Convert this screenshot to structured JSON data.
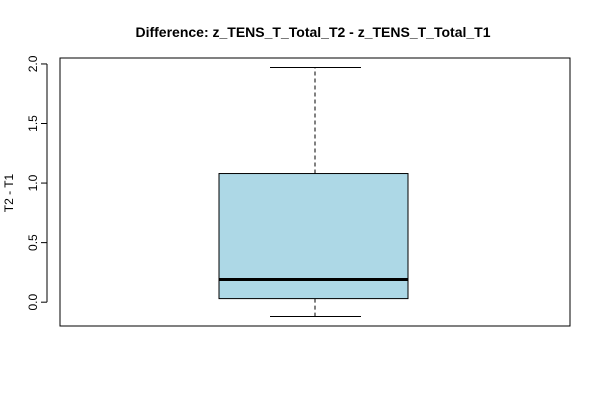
{
  "chart_data": {
    "type": "box",
    "title": "Difference: z_TENS_T_Total_T2 - z_TENS_T_Total_T1",
    "xlabel": "",
    "ylabel": "T2 - T1",
    "ylim": [
      -0.2,
      2.05
    ],
    "yticks": [
      "0.0",
      "0.5",
      "1.0",
      "1.5",
      "2.0"
    ],
    "grid": false,
    "box": {
      "whisker_low": -0.12,
      "q1": 0.03,
      "median": 0.19,
      "q3": 1.08,
      "whisker_high": 1.97
    },
    "colors": {
      "box_fill": "#add8e6",
      "stroke": "#000000"
    }
  }
}
